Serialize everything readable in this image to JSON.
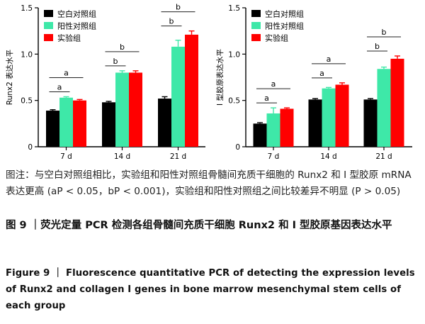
{
  "figure": {
    "caption_note": "图注：与空白对照组相比，实验组和阳性对照组骨髓间充质干细胞的 Runx2 和 Ⅰ 型胶原 mRNA 表达更高 (aP < 0.05，bP < 0.001)，实验组和阳性对照组之间比较差异不明显 (P > 0.05)",
    "title_cn": "图 9 ｜荧光定量 PCR 检测各组骨髓间充质干细胞 Runx2 和 Ⅰ 型胶原基因表达水平",
    "title_en": "Figure 9 ｜ Fluorescence quantitative PCR of detecting the expression levels of Runx2 and collagen I genes in bone marrow mesenchymal stem cells of each group"
  },
  "chart_data": [
    {
      "type": "bar",
      "title": "",
      "ylabel": "Runx2 表达水平",
      "xlabel": "",
      "categories": [
        "7 d",
        "14 d",
        "21 d"
      ],
      "ylim": [
        0,
        1.5
      ],
      "yticks": [
        "0",
        "0.5",
        "1.0",
        "1.5"
      ],
      "legend_position": "top-left",
      "series": [
        {
          "name": "空白对照组",
          "color": "#000000",
          "values": [
            0.39,
            0.48,
            0.52
          ],
          "errors": [
            0.01,
            0.01,
            0.02
          ]
        },
        {
          "name": "阳性对照组",
          "color": "#3ee8a8",
          "values": [
            0.53,
            0.8,
            1.08
          ],
          "errors": [
            0.01,
            0.02,
            0.07
          ]
        },
        {
          "name": "实验组",
          "color": "#ff0000",
          "values": [
            0.5,
            0.8,
            1.21
          ],
          "errors": [
            0.01,
            0.02,
            0.04
          ]
        }
      ],
      "annotations": [
        {
          "category": 0,
          "label": "a",
          "from": 0,
          "to": 1
        },
        {
          "category": 0,
          "label": "a",
          "from": 0,
          "to": 2
        },
        {
          "category": 1,
          "label": "b",
          "from": 0,
          "to": 1
        },
        {
          "category": 1,
          "label": "b",
          "from": 0,
          "to": 2
        },
        {
          "category": 2,
          "label": "b",
          "from": 0,
          "to": 1
        },
        {
          "category": 2,
          "label": "b",
          "from": 0,
          "to": 2
        }
      ]
    },
    {
      "type": "bar",
      "title": "",
      "ylabel": "Ⅰ 型胶原表达水平",
      "xlabel": "",
      "categories": [
        "7 d",
        "14 d",
        "21 d"
      ],
      "ylim": [
        0,
        1.5
      ],
      "yticks": [
        "0",
        "0.5",
        "1.0",
        "1.5"
      ],
      "legend_position": "top-left",
      "series": [
        {
          "name": "空白对照组",
          "color": "#000000",
          "values": [
            0.25,
            0.51,
            0.51
          ],
          "errors": [
            0.01,
            0.01,
            0.01
          ]
        },
        {
          "name": "阳性对照组",
          "color": "#3ee8a8",
          "values": [
            0.36,
            0.63,
            0.84
          ],
          "errors": [
            0.06,
            0.01,
            0.02
          ]
        },
        {
          "name": "实验组",
          "color": "#ff0000",
          "values": [
            0.41,
            0.67,
            0.95
          ],
          "errors": [
            0.01,
            0.02,
            0.03
          ]
        }
      ],
      "annotations": [
        {
          "category": 0,
          "label": "a",
          "from": 0,
          "to": 1
        },
        {
          "category": 0,
          "label": "a",
          "from": 0,
          "to": 2
        },
        {
          "category": 1,
          "label": "a",
          "from": 0,
          "to": 1
        },
        {
          "category": 1,
          "label": "a",
          "from": 0,
          "to": 2
        },
        {
          "category": 2,
          "label": "b",
          "from": 0,
          "to": 1
        },
        {
          "category": 2,
          "label": "b",
          "from": 0,
          "to": 2
        }
      ]
    }
  ]
}
